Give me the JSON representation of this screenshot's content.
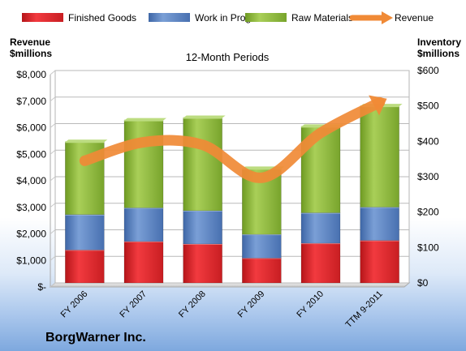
{
  "chart_data": {
    "type": "bar",
    "stacked": true,
    "subtitle": "12-Month Periods",
    "company": "BorgWarner Inc.",
    "categories": [
      "FY 2006",
      "FY 2007",
      "FY 2008",
      "FY 2009",
      "FY 2010",
      "TTM 9-2011"
    ],
    "left_axis": {
      "title_line1": "Revenue",
      "title_line2": "$millions",
      "ylim": [
        0,
        8000
      ],
      "ticks": [
        "$-",
        "$1,000",
        "$2,000",
        "$3,000",
        "$4,000",
        "$5,000",
        "$6,000",
        "$7,000",
        "$8,000"
      ]
    },
    "right_axis": {
      "title_line1": "Inventory",
      "title_line2": "$millions",
      "ylim": [
        0,
        600
      ],
      "ticks": [
        "$0",
        "$100",
        "$200",
        "$300",
        "$400",
        "$500",
        "$600"
      ]
    },
    "series": [
      {
        "name": "Finished Goods",
        "axis": "right",
        "color": "#e8262b",
        "values": [
          93,
          117,
          110,
          70,
          112,
          120
        ]
      },
      {
        "name": "Work in Progress",
        "axis": "right",
        "color": "#5a83c0",
        "values": [
          100,
          95,
          94,
          67,
          86,
          94
        ]
      },
      {
        "name": "Raw Materials",
        "axis": "right",
        "color": "#8fb73c",
        "values": [
          205,
          247,
          262,
          185,
          243,
          285
        ]
      },
      {
        "name": "Revenue",
        "axis": "left",
        "type": "line",
        "color": "#f08a36",
        "values": [
          4600,
          5300,
          5200,
          3960,
          5650,
          6800
        ]
      }
    ],
    "grid": true,
    "legend": "top"
  }
}
